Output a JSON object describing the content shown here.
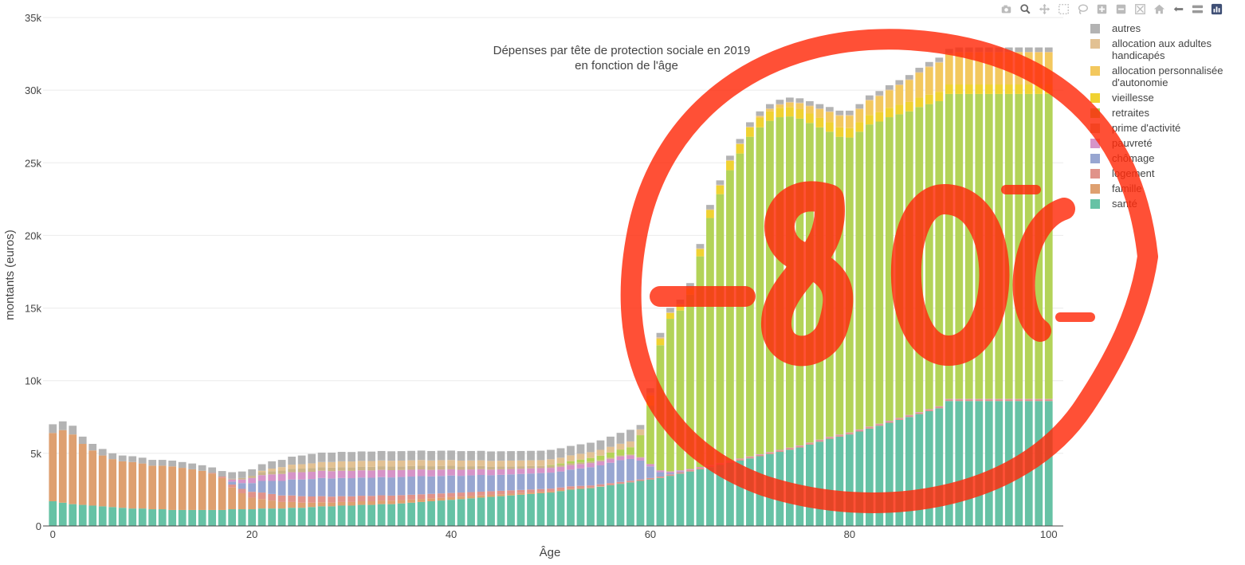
{
  "modebar": {
    "buttons": [
      {
        "name": "camera-icon"
      },
      {
        "name": "zoom-icon"
      },
      {
        "name": "pan-icon"
      },
      {
        "name": "box-select-icon"
      },
      {
        "name": "lasso-select-icon"
      },
      {
        "name": "zoom-in-icon"
      },
      {
        "name": "zoom-out-icon"
      },
      {
        "name": "autoscale-icon"
      },
      {
        "name": "home-icon"
      },
      {
        "name": "spike-lines-icon"
      },
      {
        "name": "hover-compare-icon"
      },
      {
        "name": "plotly-logo-icon"
      }
    ]
  },
  "chart_data": {
    "type": "bar",
    "barmode": "stack",
    "title": [
      "Dépenses par tête de protection sociale en 2019",
      "en fonction de l'âge"
    ],
    "xlabel": "Âge",
    "ylabel": "montants (euros)",
    "xlim": [
      -0.5,
      100.5
    ],
    "ylim": [
      0,
      35000
    ],
    "xticks": [
      0,
      20,
      40,
      60,
      80,
      100
    ],
    "yticks": [
      0,
      5000,
      10000,
      15000,
      20000,
      25000,
      30000,
      35000
    ],
    "yticklabels": [
      "0",
      "5k",
      "10k",
      "15k",
      "20k",
      "25k",
      "30k",
      "35k"
    ],
    "grid": true,
    "legend_position": "right",
    "x_start": 0,
    "x_step": 1,
    "series": [
      {
        "name": "santé",
        "color": "#66c2a5",
        "values": [
          1700,
          1600,
          1500,
          1450,
          1400,
          1350,
          1300,
          1250,
          1200,
          1200,
          1150,
          1150,
          1100,
          1100,
          1100,
          1100,
          1100,
          1100,
          1150,
          1150,
          1150,
          1200,
          1200,
          1200,
          1250,
          1250,
          1300,
          1350,
          1350,
          1400,
          1400,
          1450,
          1450,
          1500,
          1500,
          1550,
          1600,
          1650,
          1700,
          1750,
          1800,
          1850,
          1900,
          1950,
          2000,
          2050,
          2100,
          2150,
          2200,
          2250,
          2300,
          2400,
          2500,
          2550,
          2600,
          2700,
          2800,
          2900,
          3000,
          3100,
          3200,
          3300,
          3450,
          3600,
          3750,
          3900,
          4050,
          4200,
          4350,
          4500,
          4650,
          4800,
          4950,
          5100,
          5250,
          5400,
          5600,
          5800,
          6000,
          6150,
          6300,
          6500,
          6700,
          6900,
          7100,
          7300,
          7500,
          7700,
          7900,
          8100,
          8600,
          8600,
          8600,
          8600,
          8600,
          8600,
          8600,
          8600,
          8600,
          8600,
          8600
        ]
      },
      {
        "name": "famille",
        "color": "#dea070",
        "values": [
          4700,
          5000,
          4800,
          4200,
          3800,
          3500,
          3300,
          3200,
          3200,
          3100,
          3000,
          3000,
          3000,
          2900,
          2800,
          2700,
          2500,
          2200,
          1500,
          1100,
          800,
          650,
          550,
          450,
          400,
          350,
          300,
          280,
          260,
          250,
          250,
          250,
          250,
          250,
          240,
          230,
          220,
          210,
          200,
          190,
          180,
          170,
          160,
          150,
          140,
          130,
          120,
          110,
          100,
          90,
          80,
          70,
          60,
          50,
          40,
          30,
          20,
          10,
          0,
          0,
          0,
          0,
          0,
          0,
          0,
          0,
          0,
          0,
          0,
          0,
          0,
          0,
          0,
          0,
          0,
          0,
          0,
          0,
          0,
          0,
          0,
          0,
          0,
          0,
          0,
          0,
          0,
          0,
          0,
          0,
          0,
          0,
          0,
          0,
          0,
          0,
          0,
          0,
          0,
          0,
          0
        ]
      },
      {
        "name": "logement",
        "color": "#e0938a",
        "values": [
          0,
          0,
          0,
          0,
          0,
          0,
          0,
          0,
          0,
          0,
          0,
          0,
          0,
          0,
          0,
          0,
          50,
          100,
          200,
          300,
          400,
          450,
          450,
          450,
          450,
          450,
          430,
          420,
          410,
          400,
          390,
          380,
          370,
          360,
          350,
          340,
          330,
          320,
          310,
          300,
          290,
          280,
          270,
          260,
          250,
          240,
          230,
          220,
          210,
          200,
          190,
          180,
          170,
          160,
          150,
          140,
          130,
          120,
          110,
          100,
          100,
          100,
          100,
          100,
          100,
          100,
          100,
          100,
          100,
          100,
          100,
          100,
          100,
          100,
          100,
          100,
          100,
          100,
          100,
          100,
          100,
          100,
          100,
          100,
          100,
          100,
          100,
          100,
          100,
          100,
          100,
          100,
          100,
          100,
          100,
          100,
          100,
          100,
          100,
          100,
          100
        ]
      },
      {
        "name": "chômage",
        "color": "#98a6d1",
        "values": [
          0,
          0,
          0,
          0,
          0,
          0,
          0,
          0,
          0,
          0,
          0,
          0,
          0,
          0,
          0,
          0,
          0,
          0,
          200,
          400,
          600,
          800,
          900,
          1000,
          1100,
          1150,
          1200,
          1250,
          1250,
          1250,
          1250,
          1250,
          1250,
          1250,
          1250,
          1250,
          1250,
          1250,
          1200,
          1200,
          1200,
          1150,
          1150,
          1150,
          1100,
          1100,
          1100,
          1100,
          1100,
          1100,
          1100,
          1100,
          1150,
          1200,
          1250,
          1300,
          1400,
          1500,
          1500,
          1300,
          800,
          300,
          100,
          50,
          0,
          0,
          0,
          0,
          0,
          0,
          0,
          0,
          0,
          0,
          0,
          0,
          0,
          0,
          0,
          0,
          0,
          0,
          0,
          0,
          0,
          0,
          0,
          0,
          0,
          0,
          0,
          0,
          0,
          0,
          0,
          0,
          0,
          0,
          0,
          0,
          0
        ]
      },
      {
        "name": "pauvreté",
        "color": "#d694c8",
        "values": [
          0,
          0,
          0,
          0,
          0,
          0,
          0,
          0,
          0,
          0,
          0,
          0,
          0,
          0,
          0,
          0,
          0,
          0,
          150,
          250,
          350,
          400,
          450,
          480,
          500,
          500,
          500,
          500,
          500,
          500,
          500,
          500,
          500,
          500,
          500,
          480,
          470,
          460,
          450,
          440,
          430,
          420,
          410,
          400,
          390,
          380,
          370,
          360,
          350,
          340,
          330,
          320,
          310,
          300,
          290,
          280,
          270,
          260,
          250,
          200,
          150,
          120,
          100,
          80,
          70,
          60,
          50,
          40,
          40,
          40,
          40,
          40,
          40,
          40,
          40,
          40,
          40,
          40,
          40,
          40,
          40,
          40,
          40,
          40,
          40,
          40,
          40,
          40,
          40,
          40,
          40,
          40,
          40,
          40,
          40,
          40,
          40,
          40,
          40,
          40,
          40
        ]
      },
      {
        "name": "prime d'activité",
        "color": "#c9b48a",
        "values": [
          0,
          0,
          0,
          0,
          0,
          0,
          0,
          0,
          0,
          0,
          0,
          0,
          0,
          0,
          0,
          0,
          0,
          0,
          50,
          100,
          150,
          200,
          220,
          230,
          240,
          250,
          250,
          250,
          250,
          250,
          250,
          250,
          250,
          250,
          250,
          250,
          250,
          250,
          250,
          250,
          240,
          230,
          220,
          210,
          200,
          190,
          180,
          170,
          160,
          150,
          140,
          130,
          120,
          110,
          100,
          90,
          80,
          70,
          60,
          50,
          30,
          20,
          10,
          0,
          0,
          0,
          0,
          0,
          0,
          0,
          0,
          0,
          0,
          0,
          0,
          0,
          0,
          0,
          0,
          0,
          0,
          0,
          0,
          0,
          0,
          0,
          0,
          0,
          0,
          0,
          0,
          0,
          0,
          0,
          0,
          0,
          0,
          0,
          0,
          0,
          0
        ]
      },
      {
        "name": "retraites",
        "color": "#b3d358",
        "values": [
          0,
          0,
          0,
          0,
          0,
          0,
          0,
          0,
          0,
          0,
          0,
          0,
          0,
          0,
          0,
          0,
          0,
          0,
          0,
          0,
          0,
          0,
          0,
          0,
          0,
          0,
          0,
          0,
          0,
          0,
          0,
          0,
          0,
          0,
          0,
          0,
          0,
          0,
          0,
          0,
          0,
          0,
          0,
          0,
          0,
          0,
          0,
          0,
          0,
          0,
          50,
          100,
          150,
          200,
          250,
          300,
          350,
          400,
          500,
          1500,
          4000,
          8600,
          10500,
          11000,
          12000,
          14500,
          17000,
          18500,
          20000,
          21000,
          22000,
          22500,
          22800,
          22900,
          22800,
          22500,
          22000,
          21500,
          21000,
          20500,
          20300,
          20500,
          20800,
          20800,
          20900,
          20900,
          20900,
          21000,
          21000,
          21000,
          21000,
          21000,
          21000,
          21000,
          21000,
          21000,
          21000,
          21000,
          21000,
          21000,
          21000
        ]
      },
      {
        "name": "vieillesse",
        "color": "#f0d232",
        "values": [
          0,
          0,
          0,
          0,
          0,
          0,
          0,
          0,
          0,
          0,
          0,
          0,
          0,
          0,
          0,
          0,
          0,
          0,
          0,
          0,
          0,
          0,
          0,
          0,
          0,
          0,
          0,
          0,
          0,
          0,
          0,
          0,
          0,
          0,
          0,
          0,
          0,
          0,
          0,
          0,
          0,
          0,
          0,
          0,
          0,
          0,
          0,
          0,
          0,
          0,
          0,
          0,
          0,
          0,
          0,
          0,
          0,
          0,
          0,
          0,
          700,
          450,
          400,
          400,
          450,
          500,
          550,
          600,
          650,
          650,
          650,
          650,
          650,
          650,
          650,
          650,
          650,
          650,
          650,
          650,
          650,
          650,
          650,
          650,
          650,
          650,
          650,
          650,
          650,
          650,
          650,
          650,
          650,
          650,
          650,
          650,
          650,
          650,
          650,
          650,
          650
        ]
      },
      {
        "name": "allocation personnalisée\n d'autonomie",
        "color": "#f3c85e",
        "values": [
          0,
          0,
          0,
          0,
          0,
          0,
          0,
          0,
          0,
          0,
          0,
          0,
          0,
          0,
          0,
          0,
          0,
          0,
          0,
          0,
          0,
          0,
          0,
          0,
          0,
          0,
          0,
          0,
          0,
          0,
          0,
          0,
          0,
          0,
          0,
          0,
          0,
          0,
          0,
          0,
          0,
          0,
          0,
          0,
          0,
          0,
          0,
          0,
          0,
          0,
          0,
          0,
          0,
          0,
          0,
          0,
          0,
          0,
          0,
          0,
          0,
          0,
          0,
          0,
          0,
          0,
          0,
          0,
          0,
          0,
          0,
          100,
          150,
          200,
          300,
          400,
          500,
          600,
          700,
          800,
          850,
          900,
          1000,
          1100,
          1200,
          1350,
          1500,
          1700,
          1900,
          2000,
          2100,
          2200,
          2200,
          2200,
          2200,
          2200,
          2200,
          2200,
          2200,
          2200,
          2200
        ]
      },
      {
        "name": "allocation aux adultes\n handicapés",
        "color": "#e2c193",
        "values": [
          0,
          0,
          0,
          0,
          0,
          0,
          0,
          0,
          0,
          0,
          0,
          0,
          0,
          0,
          0,
          0,
          0,
          0,
          0,
          0,
          0,
          100,
          180,
          240,
          280,
          300,
          330,
          350,
          380,
          400,
          400,
          400,
          400,
          400,
          400,
          400,
          400,
          400,
          400,
          400,
          400,
          400,
          400,
          400,
          400,
          400,
          400,
          400,
          400,
          400,
          400,
          400,
          400,
          400,
          400,
          400,
          400,
          400,
          400,
          400,
          200,
          100,
          50,
          50,
          50,
          50,
          50,
          50,
          50,
          50,
          50,
          50,
          50,
          50,
          50,
          50,
          50,
          50,
          50,
          50,
          50,
          50,
          50,
          50,
          50,
          50,
          50,
          50,
          50,
          50,
          50,
          50,
          50,
          50,
          50,
          50,
          50,
          50,
          50,
          50,
          50
        ]
      },
      {
        "name": "autres",
        "color": "#b3b3b3",
        "values": [
          600,
          600,
          600,
          500,
          450,
          450,
          400,
          400,
          400,
          400,
          400,
          400,
          400,
          400,
          400,
          380,
          380,
          380,
          450,
          450,
          450,
          450,
          500,
          500,
          550,
          600,
          650,
          650,
          650,
          650,
          650,
          650,
          650,
          650,
          650,
          650,
          650,
          650,
          650,
          650,
          650,
          650,
          650,
          650,
          650,
          650,
          650,
          650,
          650,
          650,
          650,
          650,
          650,
          650,
          650,
          650,
          700,
          750,
          800,
          300,
          300,
          300,
          300,
          300,
          300,
          300,
          300,
          300,
          300,
          300,
          300,
          300,
          300,
          300,
          300,
          300,
          300,
          300,
          300,
          300,
          300,
          300,
          300,
          300,
          300,
          300,
          300,
          300,
          300,
          300,
          300,
          300,
          300,
          300,
          300,
          300,
          300,
          300,
          300,
          300,
          300
        ]
      }
    ]
  },
  "legend_order": [
    "autres",
    "allocation aux adultes\n handicapés",
    "allocation personnalisée\n d'autonomie",
    "vieillesse",
    "retraites",
    "prime d'activité",
    "pauvreté",
    "chômage",
    "logement",
    "famille",
    "santé"
  ],
  "annotation_overlay": {
    "text": "-80/-",
    "color": "#ff2a0a"
  }
}
